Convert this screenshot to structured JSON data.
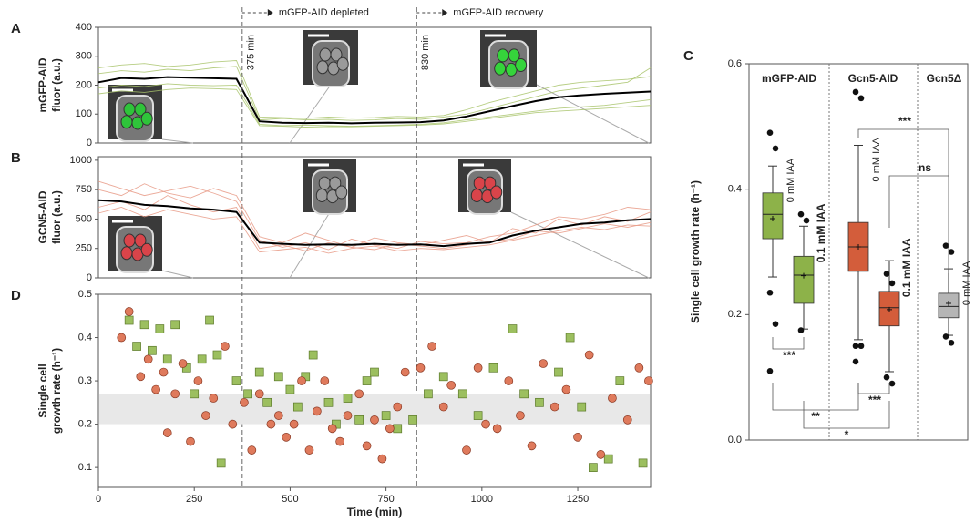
{
  "chart_data": [
    {
      "type": "line",
      "panel": "A",
      "ylabel": [
        "mGFP-AID",
        "fluor (a.u.)"
      ],
      "xlim": [
        0,
        1440
      ],
      "ylim": [
        0,
        400
      ],
      "yticks": [
        0,
        100,
        200,
        300,
        400
      ],
      "vlines": [
        {
          "value": 375,
          "label": "375 min"
        },
        {
          "value": 830,
          "label": "830 min"
        }
      ],
      "phases": [
        "mGFP-AID depleted",
        "mGFP-AID recovery"
      ],
      "x": [
        0,
        60,
        120,
        180,
        240,
        300,
        360,
        420,
        480,
        540,
        600,
        660,
        720,
        780,
        840,
        900,
        960,
        1020,
        1080,
        1140,
        1200,
        1260,
        1320,
        1380,
        1440
      ],
      "series": [
        {
          "color": "#a9c46c",
          "values": [
            240,
            250,
            245,
            255,
            250,
            260,
            265,
            80,
            85,
            80,
            82,
            78,
            80,
            85,
            82,
            90,
            100,
            120,
            140,
            160,
            180,
            190,
            200,
            210,
            260
          ]
        },
        {
          "color": "#a9c46c",
          "values": [
            190,
            200,
            195,
            205,
            200,
            198,
            200,
            65,
            60,
            62,
            60,
            58,
            60,
            62,
            65,
            70,
            80,
            90,
            100,
            110,
            120,
            125,
            130,
            140,
            150
          ]
        },
        {
          "color": "#a9c46c",
          "values": [
            260,
            270,
            275,
            265,
            270,
            280,
            285,
            90,
            88,
            85,
            90,
            86,
            88,
            92,
            90,
            95,
            115,
            140,
            160,
            180,
            200,
            210,
            215,
            220,
            230
          ]
        },
        {
          "color": "#a9c46c",
          "values": [
            170,
            180,
            175,
            185,
            190,
            188,
            185,
            60,
            58,
            55,
            57,
            56,
            58,
            60,
            62,
            66,
            75,
            85,
            95,
            105,
            110,
            115,
            120,
            125,
            130
          ]
        },
        {
          "color": "#000000",
          "values": [
            210,
            225,
            222,
            228,
            226,
            224,
            222,
            75,
            70,
            69,
            70,
            68,
            70,
            71,
            72,
            78,
            92,
            110,
            128,
            145,
            158,
            165,
            170,
            174,
            178
          ]
        }
      ]
    },
    {
      "type": "line",
      "panel": "B",
      "ylabel": [
        "GCN5-AID",
        "fluor (a.u.)"
      ],
      "xlim": [
        0,
        1440
      ],
      "ylim": [
        0,
        1030
      ],
      "yticks": [
        0,
        250,
        500,
        750,
        1000
      ],
      "x": [
        0,
        60,
        120,
        180,
        240,
        300,
        360,
        420,
        480,
        540,
        600,
        660,
        720,
        780,
        840,
        900,
        960,
        1020,
        1080,
        1140,
        1200,
        1260,
        1320,
        1380,
        1440
      ],
      "series": [
        {
          "color": "#e89a86",
          "values": [
            750,
            700,
            800,
            720,
            680,
            760,
            700,
            350,
            300,
            380,
            320,
            260,
            340,
            300,
            280,
            320,
            360,
            300,
            420,
            380,
            500,
            450,
            520,
            480,
            560
          ]
        },
        {
          "color": "#e89a86",
          "values": [
            600,
            650,
            580,
            700,
            620,
            560,
            600,
            250,
            280,
            230,
            300,
            260,
            240,
            290,
            270,
            250,
            280,
            310,
            330,
            400,
            380,
            420,
            460,
            430,
            470
          ]
        },
        {
          "color": "#e89a86",
          "values": [
            820,
            760,
            700,
            740,
            780,
            720,
            650,
            320,
            260,
            300,
            240,
            330,
            280,
            250,
            310,
            290,
            300,
            350,
            380,
            450,
            520,
            500,
            540,
            600,
            580
          ]
        },
        {
          "color": "#e89a86",
          "values": [
            550,
            600,
            520,
            580,
            540,
            500,
            520,
            220,
            240,
            260,
            210,
            250,
            270,
            230,
            250,
            240,
            260,
            280,
            320,
            360,
            400,
            430,
            410,
            450,
            440
          ]
        },
        {
          "color": "#000000",
          "values": [
            660,
            650,
            620,
            610,
            590,
            580,
            560,
            300,
            290,
            280,
            285,
            280,
            290,
            280,
            285,
            270,
            290,
            300,
            360,
            400,
            430,
            460,
            470,
            490,
            500
          ]
        }
      ]
    },
    {
      "type": "scatter",
      "panel": "D",
      "ylabel": [
        "Single cell",
        "growth rate (h⁻¹)"
      ],
      "xlabel": "Time (min)",
      "xlim": [
        0,
        1440
      ],
      "xticks": [
        0,
        250,
        500,
        750,
        1000,
        1250
      ],
      "ylim": [
        0.054,
        0.5
      ],
      "yticks": [
        0.1,
        0.2,
        0.3,
        0.4,
        0.5
      ],
      "band": [
        0.2,
        0.27
      ],
      "series": [
        {
          "marker": "square",
          "color": "#9cbf5f",
          "x": [
            80,
            100,
            120,
            140,
            160,
            180,
            200,
            230,
            250,
            270,
            290,
            310,
            320,
            360,
            390,
            420,
            440,
            470,
            500,
            520,
            540,
            560,
            600,
            620,
            650,
            680,
            700,
            720,
            750,
            780,
            820,
            860,
            900,
            950,
            990,
            1030,
            1080,
            1110,
            1150,
            1200,
            1230,
            1260,
            1290,
            1330,
            1360,
            1420
          ],
          "values": [
            0.44,
            0.38,
            0.43,
            0.37,
            0.42,
            0.35,
            0.43,
            0.33,
            0.27,
            0.35,
            0.44,
            0.36,
            0.11,
            0.3,
            0.27,
            0.32,
            0.25,
            0.31,
            0.28,
            0.24,
            0.31,
            0.36,
            0.25,
            0.2,
            0.26,
            0.21,
            0.3,
            0.32,
            0.22,
            0.19,
            0.21,
            0.27,
            0.31,
            0.27,
            0.22,
            0.33,
            0.42,
            0.27,
            0.25,
            0.32,
            0.4,
            0.24,
            0.1,
            0.12,
            0.3,
            0.11
          ]
        },
        {
          "marker": "circle",
          "color": "#df7a5c",
          "x": [
            60,
            80,
            110,
            130,
            150,
            170,
            180,
            200,
            220,
            240,
            260,
            280,
            300,
            330,
            350,
            380,
            400,
            420,
            450,
            470,
            490,
            510,
            530,
            550,
            570,
            590,
            610,
            630,
            650,
            680,
            700,
            720,
            740,
            760,
            780,
            800,
            840,
            870,
            900,
            920,
            960,
            990,
            1010,
            1040,
            1070,
            1100,
            1130,
            1160,
            1190,
            1220,
            1250,
            1280,
            1310,
            1340,
            1380,
            1410,
            1435
          ],
          "values": [
            0.4,
            0.46,
            0.31,
            0.35,
            0.28,
            0.32,
            0.18,
            0.27,
            0.34,
            0.16,
            0.3,
            0.22,
            0.26,
            0.38,
            0.2,
            0.25,
            0.14,
            0.27,
            0.2,
            0.22,
            0.17,
            0.2,
            0.3,
            0.14,
            0.23,
            0.3,
            0.19,
            0.16,
            0.22,
            0.27,
            0.15,
            0.21,
            0.12,
            0.19,
            0.24,
            0.32,
            0.33,
            0.38,
            0.24,
            0.29,
            0.14,
            0.33,
            0.2,
            0.19,
            0.3,
            0.22,
            0.15,
            0.34,
            0.24,
            0.28,
            0.17,
            0.36,
            0.13,
            0.26,
            0.21,
            0.33,
            0.3
          ]
        }
      ]
    },
    {
      "type": "box",
      "panel": "C",
      "ylabel": "Single cell  growth rate (h⁻¹)",
      "ylim": [
        0,
        0.6
      ],
      "yticks": [
        {
          "value": 0,
          "label": "0.0"
        },
        0.2,
        0.4,
        0.6
      ],
      "groups": [
        "mGFP-AID",
        "Gcn5-AID",
        "Gcn5Δ"
      ],
      "boxes": [
        {
          "label": "0 mM IAA",
          "color": "#8db249",
          "whislo": 0.26,
          "q1": 0.321,
          "median": 0.36,
          "q3": 0.394,
          "whishi": 0.437,
          "mean": 0.353,
          "fliers": [
            0.49,
            0.465,
            0.235,
            0.185,
            0.11
          ]
        },
        {
          "label": "0.1 mM IAA",
          "color": "#8db249",
          "whislo": 0.177,
          "q1": 0.218,
          "median": 0.263,
          "q3": 0.293,
          "whishi": 0.341,
          "mean": 0.262,
          "fliers": [
            0.36,
            0.35,
            0.175
          ]
        },
        {
          "label": "0 mM IAA",
          "color": "#d35d3b",
          "whislo": 0.16,
          "q1": 0.269,
          "median": 0.308,
          "q3": 0.347,
          "whishi": 0.47,
          "mean": 0.308,
          "fliers": [
            0.555,
            0.545,
            0.15,
            0.15,
            0.125
          ]
        },
        {
          "label": "0.1 mM IAA",
          "color": "#d35d3b",
          "whislo": 0.109,
          "q1": 0.182,
          "median": 0.211,
          "q3": 0.237,
          "whishi": 0.286,
          "mean": 0.208,
          "fliers": [
            0.265,
            0.25,
            0.1,
            0.09
          ]
        },
        {
          "label": "0 mM IAA",
          "color": "#b5b5b5",
          "whislo": 0.167,
          "q1": 0.195,
          "median": 0.213,
          "q3": 0.234,
          "whishi": 0.273,
          "mean": 0.218,
          "fliers": [
            0.31,
            0.3,
            0.165,
            0.155
          ]
        }
      ],
      "significance": [
        "***",
        "**",
        "*",
        "***",
        "***",
        "ns"
      ]
    }
  ]
}
